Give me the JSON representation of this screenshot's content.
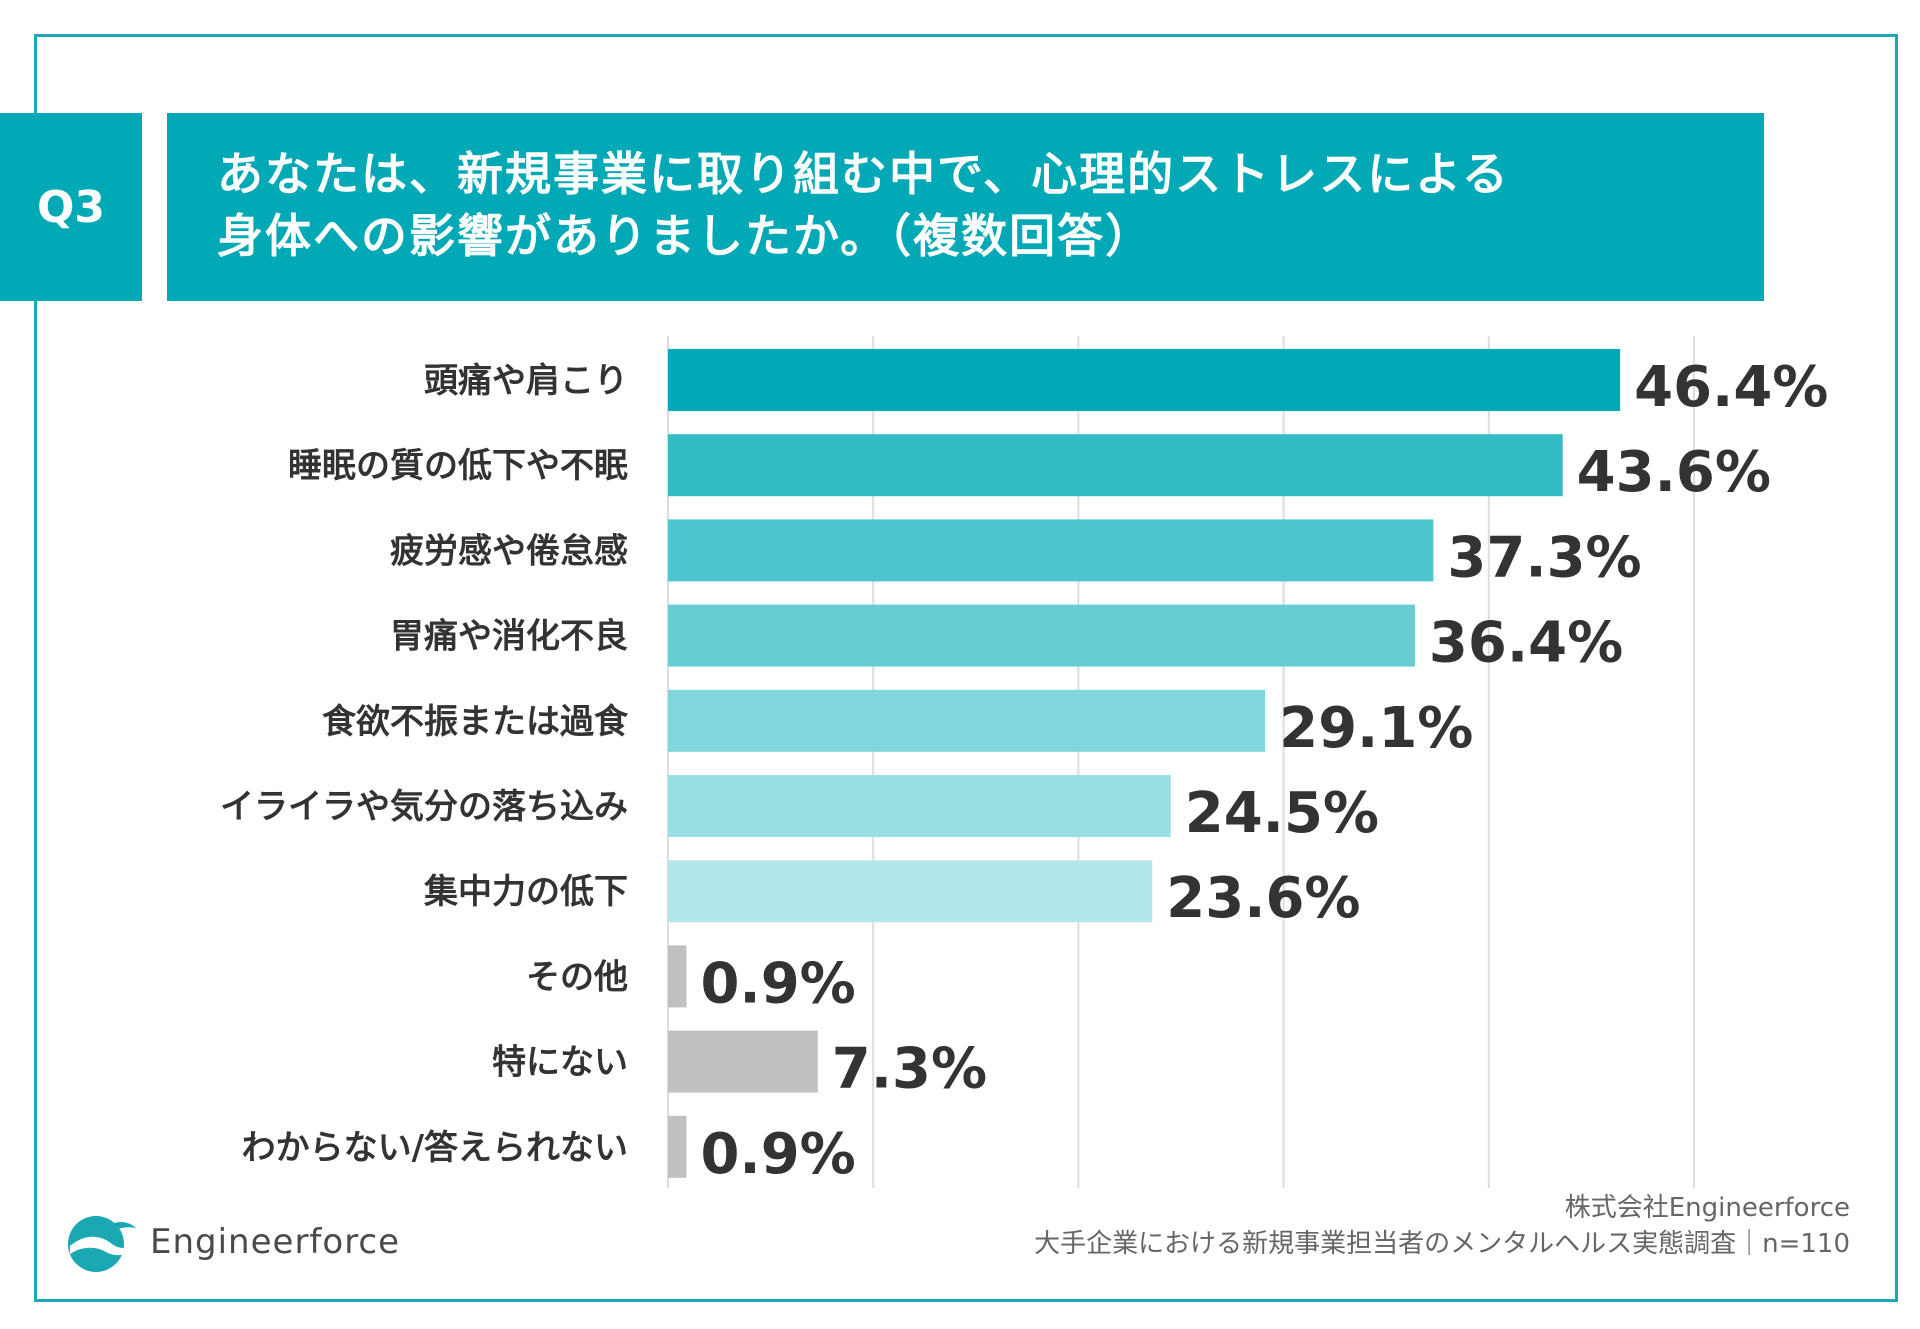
{
  "header": {
    "badge": "Q3",
    "title_line1": "あなたは、新規事業に取り組む中で、心理的ストレスによる",
    "title_line2": "身体への影響がありましたか。（複数回答）"
  },
  "chart_data": {
    "type": "bar",
    "orientation": "horizontal",
    "categories": [
      "頭痛や肩こり",
      "睡眠の質の低下や不眠",
      "疲労感や倦怠感",
      "胃痛や消化不良",
      "食欲不振または過食",
      "イライラや気分の落ち込み",
      "集中力の低下",
      "その他",
      "特にない",
      "わからない/答えられない"
    ],
    "values": [
      46.4,
      43.6,
      37.3,
      36.4,
      29.1,
      24.5,
      23.6,
      0.9,
      7.3,
      0.9
    ],
    "value_labels": [
      "46.4%",
      "43.6%",
      "37.3%",
      "36.4%",
      "29.1%",
      "24.5%",
      "23.6%",
      "0.9%",
      "7.3%",
      "0.9%"
    ],
    "colors": [
      "#00a9b5",
      "#33bcc6",
      "#4dc5ce",
      "#66cdd5",
      "#80d6dc",
      "#99dfe3",
      "#b3e7eb",
      "#c0c0c0",
      "#c0c0c0",
      "#c0c0c0"
    ],
    "xlim": [
      0,
      50
    ],
    "grid": true,
    "title": "",
    "xlabel": "",
    "ylabel": ""
  },
  "footer": {
    "source_line1": "株式会社Engineerforce",
    "source_line2": "大手企業における新規事業担当者のメンタルヘルス実態調査｜n=110",
    "logo_text": "Engineerforce"
  },
  "colors": {
    "accent": "#00a9b5",
    "border": "#1aa9b3",
    "text": "#333333",
    "grid": "#dddddd"
  }
}
